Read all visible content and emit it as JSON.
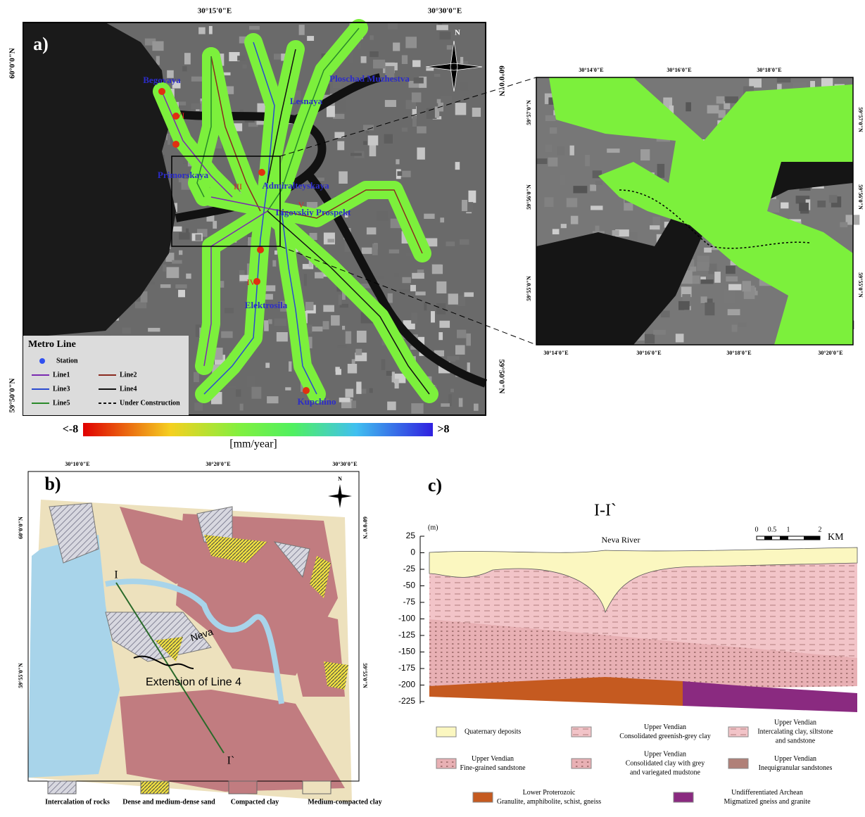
{
  "panel_a": {
    "label": "a)",
    "top_coords": [
      "30°15'0\"E",
      "30°30'0\"E"
    ],
    "left_coords": [
      "60°0'0\"N",
      "59°50'0\"N"
    ],
    "right_coords": [
      "60°0'0\"N",
      "59°50'0\"N"
    ],
    "north": "N",
    "stations": [
      "Begovaya",
      "Ploschad Muzhestva",
      "Lesnaya",
      "Primorskaya",
      "Admiralteyskaya",
      "Ligovskiy Prospekt",
      "Elektrosila",
      "Kupchino"
    ],
    "sites": [
      "VI",
      "III",
      "V",
      "IV"
    ],
    "legend": {
      "title": "Metro Line",
      "items": [
        "Station",
        "Line1",
        "Line2",
        "Line3",
        "Line4",
        "Line5",
        "Under Construction"
      ]
    },
    "colorbar": {
      "min_label": "<-8",
      "max_label": ">8",
      "unit": "[mm/year]"
    }
  },
  "inset": {
    "top_coords": [
      "30°14'0\"E",
      "30°16'0\"E",
      "30°18'0\"E"
    ],
    "bottom_coords": [
      "30°14'0\"E",
      "30°16'0\"E",
      "30°18'0\"E",
      "30°20'0\"E"
    ],
    "left_coords": [
      "59°57'0\"N",
      "59°56'0\"N",
      "59°55'0\"N"
    ],
    "right_coords": [
      "59°57'0\"N",
      "59°56'0\"N",
      "59°55'0\"N"
    ]
  },
  "panel_b": {
    "label": "b)",
    "top_coords": [
      "30°10'0\"E",
      "30°20'0\"E",
      "30°30'0\"E"
    ],
    "left_coords": [
      "60°0'0\"N",
      "59°55'0\"N"
    ],
    "right_coords": [
      "60°0'0\"N",
      "59°55'0\"N"
    ],
    "north": "N",
    "section_start": "I",
    "section_end": "I`",
    "river": "Neva",
    "extension": "Extension of Line 4",
    "legend": [
      "Intercalation of rocks",
      "Dense and medium-dense sand",
      "Compacted clay",
      "Medium-compacted clay"
    ]
  },
  "panel_c": {
    "label": "c)",
    "title": "I-I`",
    "unit": "(m)",
    "yticks": [
      "25",
      "0",
      "-25",
      "-50",
      "-75",
      "-100",
      "-125",
      "-150",
      "-175",
      "-200",
      "-225"
    ],
    "river": "Neva River",
    "scale": [
      "0",
      "0.5",
      "1",
      "2",
      "KM"
    ],
    "legend": [
      [
        "Quaternary deposits"
      ],
      [
        "Upper Vendian",
        "Consolidated greenish-grey clay"
      ],
      [
        "Upper Vendian",
        "Intercalating clay, siltstone",
        "and sandstone"
      ],
      [
        "Upper Vendian",
        "Fine-grained sandstone"
      ],
      [
        "Upper Vendian",
        "Consolidated clay with grey",
        "and variegated mudstone"
      ],
      [
        "Upper Vendian",
        "Inequigranular sandstones"
      ],
      [
        "Lower Proterozoic",
        "Granulite, amphibolite, schist, gneiss"
      ],
      [
        "Undifferentiated Archean",
        "Migmatized gneiss and granite"
      ]
    ]
  }
}
